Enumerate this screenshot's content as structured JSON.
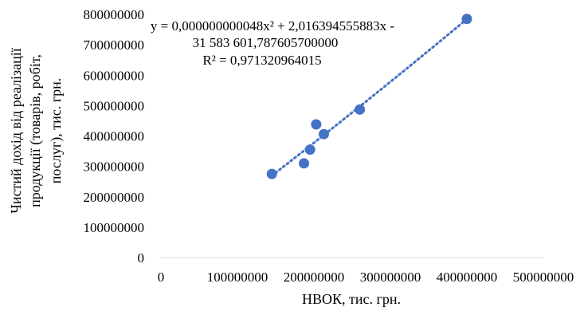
{
  "chart_data": {
    "type": "scatter",
    "title": "",
    "xlabel": "НВОК, тис. грн.",
    "ylabel_lines": [
      "Чистий дохід від реалізації",
      "продукції (товарів, робіт,",
      "послуг), тис. грн."
    ],
    "xlim": [
      0,
      500000000
    ],
    "ylim": [
      0,
      800000000
    ],
    "x_ticks": [
      0,
      100000000,
      200000000,
      300000000,
      400000000,
      500000000
    ],
    "x_tick_labels": [
      "0",
      "100000000",
      "200000000",
      "300000000",
      "400000000",
      "500000000"
    ],
    "y_ticks": [
      0,
      100000000,
      200000000,
      300000000,
      400000000,
      500000000,
      600000000,
      700000000,
      800000000
    ],
    "y_tick_labels": [
      "0",
      "100000000",
      "200000000",
      "300000000",
      "400000000",
      "500000000",
      "600000000",
      "700000000",
      "800000000"
    ],
    "grid": false,
    "legend": "none",
    "series": [
      {
        "points": [
          {
            "x": 145000000,
            "y": 275000000
          },
          {
            "x": 187000000,
            "y": 310000000
          },
          {
            "x": 195000000,
            "y": 355000000
          },
          {
            "x": 203000000,
            "y": 438000000
          },
          {
            "x": 213000000,
            "y": 406000000
          },
          {
            "x": 260000000,
            "y": 487000000
          },
          {
            "x": 400000000,
            "y": 785000000
          }
        ],
        "color": "#4472C4"
      }
    ],
    "trendline": {
      "type": "polynomial",
      "order": 2,
      "x_range": [
        145000000,
        400000000
      ],
      "color": "#4472C4",
      "style": "dotted"
    },
    "annotation": {
      "lines": [
        "y = 0,000000000048x² + 2,016394555883x -",
        "31 583 601,787605700000",
        "R² = 0,971320964015"
      ]
    }
  }
}
